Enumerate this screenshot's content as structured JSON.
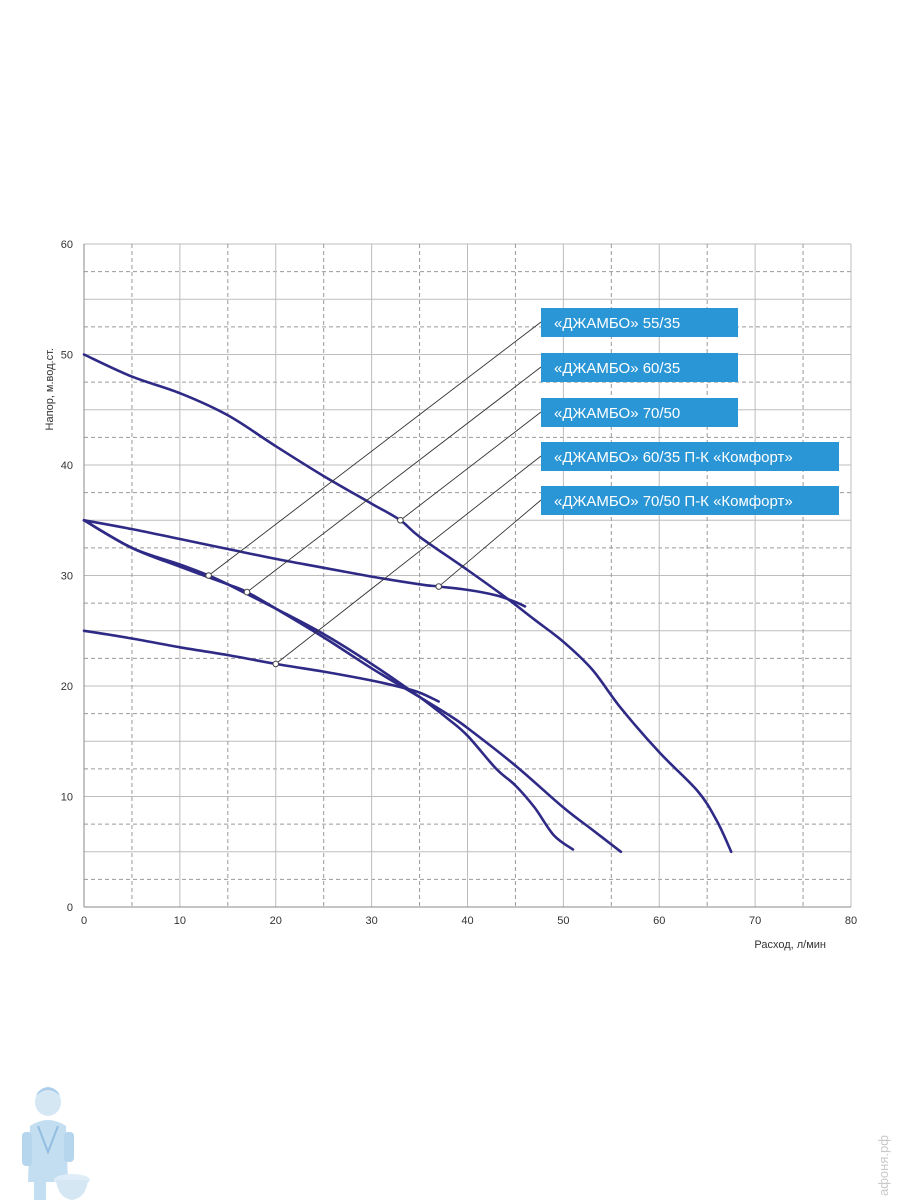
{
  "chart_data": {
    "type": "line",
    "title": "",
    "xlabel": "Расход, л/мин",
    "ylabel": "Напор, м.вод.ст.",
    "xlim": [
      0,
      80
    ],
    "ylim": [
      0,
      60
    ],
    "x_ticks": [
      "0",
      "10",
      "20",
      "30",
      "40",
      "50",
      "60",
      "70",
      "80"
    ],
    "y_ticks": [
      "0",
      "10",
      "20",
      "30",
      "40",
      "50",
      "60"
    ],
    "grid": true,
    "legend_position": "top-right",
    "colors": {
      "line": "#2e2a86",
      "legend_bg": "#2a96d6",
      "leader": "#333333",
      "grid_solid": "#bdbdbd",
      "grid_dash": "#9a9a9a"
    },
    "series": [
      {
        "name": "«ДЖАМБО» 55/35",
        "marker": [
          13,
          30
        ],
        "x": [
          0,
          5,
          10,
          13,
          15,
          20,
          25,
          30,
          35,
          38,
          40,
          43,
          45,
          47,
          49,
          51
        ],
        "y": [
          35,
          32.5,
          31,
          30,
          29.2,
          27,
          24.7,
          22,
          19,
          17,
          15.5,
          12.5,
          11,
          9,
          6.5,
          5.2
        ]
      },
      {
        "name": "«ДЖАМБО» 60/35",
        "marker": [
          17,
          28.5
        ],
        "x": [
          0,
          5,
          10,
          15,
          17,
          20,
          25,
          30,
          35,
          38,
          40,
          45,
          50,
          53,
          56
        ],
        "y": [
          35,
          32.5,
          30.8,
          29.2,
          28.5,
          27,
          24.4,
          21.6,
          19,
          17.4,
          16.2,
          12.8,
          9,
          7,
          5
        ]
      },
      {
        "name": "«ДЖАМБО» 70/50",
        "marker": [
          33,
          35
        ],
        "x": [
          0,
          5,
          10,
          15,
          20,
          25,
          30,
          33,
          35,
          40,
          44,
          47,
          50,
          53,
          56,
          60,
          64,
          66,
          67.5
        ],
        "y": [
          50,
          48,
          46.5,
          44.5,
          41.7,
          39,
          36.5,
          35,
          33.5,
          30.5,
          28,
          26,
          24,
          21.5,
          18,
          14,
          10.5,
          7.8,
          5
        ]
      },
      {
        "name": "«ДЖАМБО» 60/35 П-К «Комфорт»",
        "marker": [
          20,
          22
        ],
        "x": [
          0,
          5,
          10,
          15,
          20,
          25,
          30,
          33,
          35,
          37
        ],
        "y": [
          25,
          24.3,
          23.5,
          22.8,
          22,
          21.3,
          20.5,
          19.9,
          19.4,
          18.6
        ]
      },
      {
        "name": "«ДЖАМБО» 70/50  П-К «Комфорт»",
        "marker": [
          37,
          29
        ],
        "x": [
          0,
          5,
          10,
          15,
          20,
          25,
          30,
          35,
          37,
          40,
          43,
          45,
          46
        ],
        "y": [
          35,
          34.2,
          33.3,
          32.4,
          31.5,
          30.7,
          29.9,
          29.2,
          29,
          28.7,
          28.2,
          27.6,
          27.2
        ]
      }
    ]
  },
  "watermark": {
    "text": "афоня.рф"
  },
  "mascot": {
    "icon": "plumber-mascot-icon"
  }
}
